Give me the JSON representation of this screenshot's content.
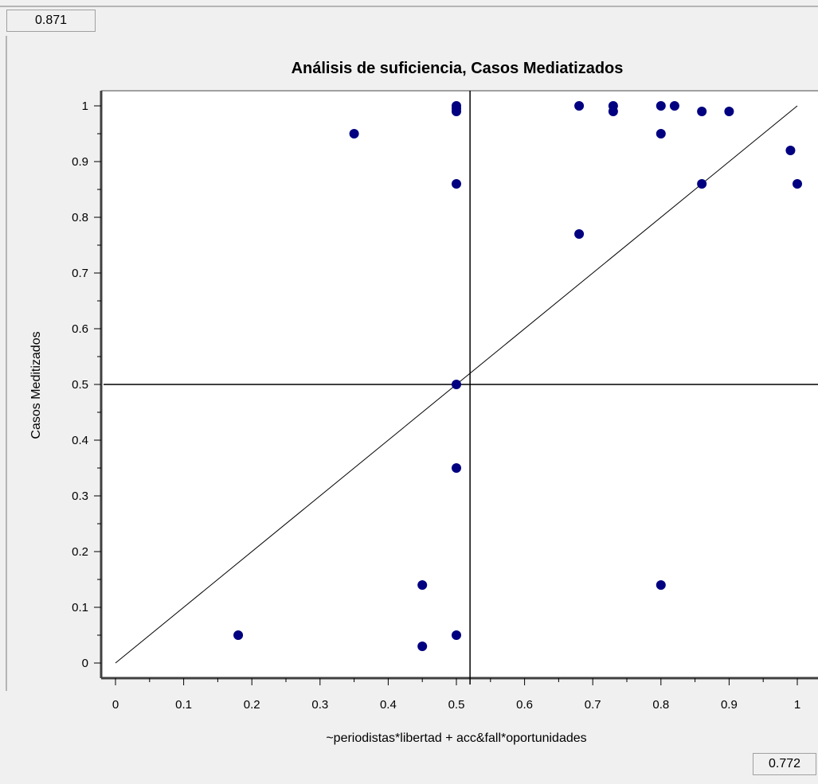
{
  "readouts": {
    "y_value": "0.871",
    "x_value": "0.772"
  },
  "chart_data": {
    "type": "scatter",
    "title": "Análisis de suficiencia, Casos Mediatizados",
    "xlabel": "~periodistas*libertad + acc&fall*oportunidades",
    "ylabel": "Casos Meditizados",
    "xlim": [
      0,
      1
    ],
    "ylim": [
      0,
      1
    ],
    "xticks": [
      "0",
      "0.1",
      "0.2",
      "0.3",
      "0.4",
      "0.5",
      "0.6",
      "0.7",
      "0.8",
      "0.9",
      "1"
    ],
    "yticks": [
      "0",
      "0.1",
      "0.2",
      "0.3",
      "0.4",
      "0.5",
      "0.6",
      "0.7",
      "0.8",
      "0.9",
      "1"
    ],
    "grid": false,
    "legend": "none",
    "diagonal_line": true,
    "crosshair": {
      "x": 0.52,
      "y": 0.5
    },
    "point_color": "#000080",
    "points": [
      {
        "x": 0.18,
        "y": 0.05
      },
      {
        "x": 0.35,
        "y": 0.95
      },
      {
        "x": 0.45,
        "y": 0.14
      },
      {
        "x": 0.45,
        "y": 0.03
      },
      {
        "x": 0.5,
        "y": 1.0
      },
      {
        "x": 0.5,
        "y": 0.995
      },
      {
        "x": 0.5,
        "y": 0.99
      },
      {
        "x": 0.5,
        "y": 0.86
      },
      {
        "x": 0.5,
        "y": 0.5
      },
      {
        "x": 0.5,
        "y": 0.35
      },
      {
        "x": 0.5,
        "y": 0.05
      },
      {
        "x": 0.68,
        "y": 1.0
      },
      {
        "x": 0.68,
        "y": 0.77
      },
      {
        "x": 0.73,
        "y": 1.0
      },
      {
        "x": 0.73,
        "y": 0.99
      },
      {
        "x": 0.8,
        "y": 1.0
      },
      {
        "x": 0.8,
        "y": 0.95
      },
      {
        "x": 0.8,
        "y": 0.14
      },
      {
        "x": 0.82,
        "y": 1.0
      },
      {
        "x": 0.86,
        "y": 0.99
      },
      {
        "x": 0.86,
        "y": 0.86
      },
      {
        "x": 0.9,
        "y": 0.99
      },
      {
        "x": 0.99,
        "y": 0.92
      },
      {
        "x": 1.0,
        "y": 0.86
      }
    ]
  }
}
